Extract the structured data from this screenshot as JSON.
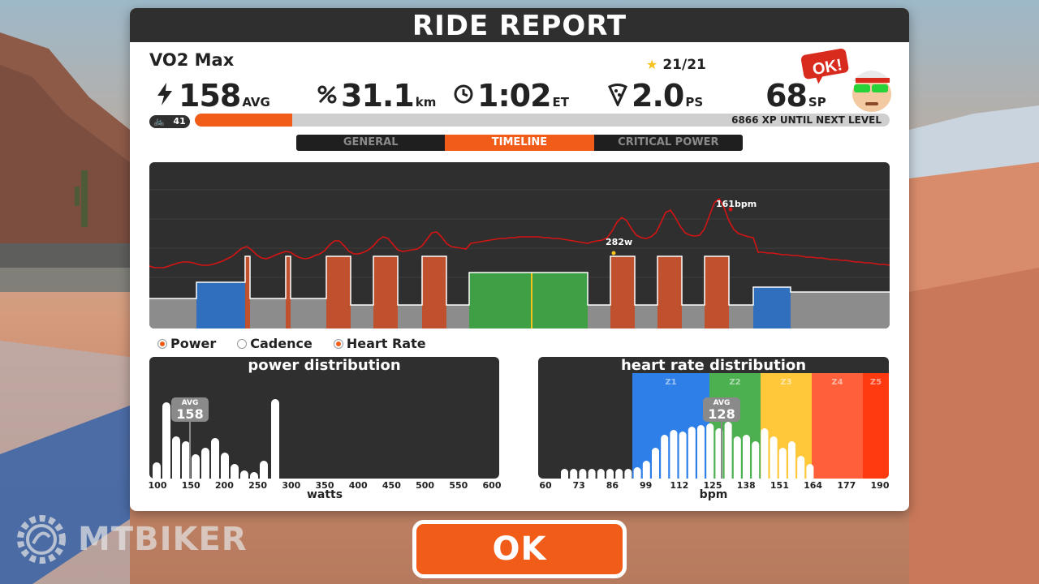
{
  "header": {
    "title": "RIDE REPORT"
  },
  "workout": {
    "name": "VO2 Max",
    "stars": "21/21"
  },
  "stats": {
    "power": {
      "value": "158",
      "unit": "AVG"
    },
    "distance": {
      "value": "31.1",
      "unit": "km"
    },
    "time": {
      "value": "1:02",
      "unit": "ET"
    },
    "pizza": {
      "value": "2.0",
      "unit": "PS"
    },
    "sport_points": {
      "value": "68",
      "unit": "SP"
    }
  },
  "avatar": {
    "badge": "OK!"
  },
  "level": {
    "value": "41",
    "xp_text": "6866 XP UNTIL NEXT LEVEL",
    "progress": 0.14
  },
  "tabs": [
    {
      "label": "GENERAL",
      "active": false
    },
    {
      "label": "TIMELINE",
      "active": true
    },
    {
      "label": "CRITICAL POWER",
      "active": false
    }
  ],
  "timeline": {
    "hr_peak_label": "161bpm",
    "power_peak_label": "282w",
    "colors": {
      "grey": "#8c8c8c",
      "blue": "#2f6fbe",
      "green": "#3e9f45",
      "red": "#c0512e",
      "hr_line": "#d41414"
    }
  },
  "legend": [
    {
      "label": "Power",
      "on": true
    },
    {
      "label": "Cadence",
      "on": false
    },
    {
      "label": "Heart Rate",
      "on": true
    }
  ],
  "power_distribution": {
    "title": "power distribution",
    "avg_label": "AVG",
    "avg_value": "158",
    "xlabel": "watts",
    "ticks": [
      "100",
      "150",
      "200",
      "250",
      "300",
      "350",
      "400",
      "450",
      "500",
      "550",
      "600"
    ]
  },
  "hr_distribution": {
    "title": "heart rate distribution",
    "avg_label": "AVG",
    "avg_value": "128",
    "xlabel": "bpm",
    "ticks": [
      "60",
      "73",
      "86",
      "99",
      "112",
      "125",
      "138",
      "151",
      "164",
      "177",
      "190"
    ],
    "zones": [
      {
        "label": "Z1",
        "color": "#2e7fe8"
      },
      {
        "label": "Z2",
        "color": "#4caf50"
      },
      {
        "label": "Z3",
        "color": "#ffc83a"
      },
      {
        "label": "Z4",
        "color": "#ff5f3a"
      },
      {
        "label": "Z5",
        "color": "#ff3a10"
      }
    ]
  },
  "ok_button": {
    "label": "OK"
  },
  "watermark": {
    "text": "MTBIKER"
  }
}
